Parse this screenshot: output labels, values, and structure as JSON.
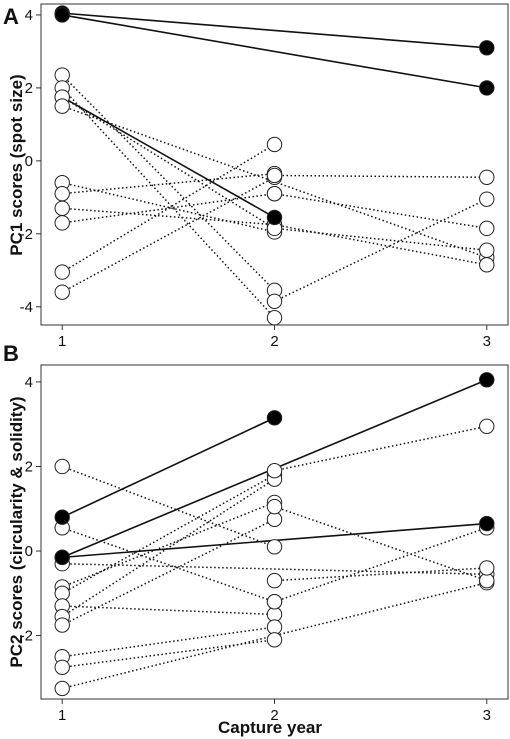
{
  "xlabel": "Capture year",
  "chart_data": [
    {
      "type": "line",
      "panel_label": "A",
      "ylabel": "PC1 scores (spot size)",
      "x_ticks": [
        1,
        2,
        3
      ],
      "y_ticks": [
        -4,
        -2,
        0,
        2,
        4
      ],
      "xlim": [
        0.9,
        3.1
      ],
      "ylim": [
        -4.5,
        4.3
      ],
      "grid": false,
      "series": [
        {
          "x": [
            1,
            3
          ],
          "y": [
            4.05,
            3.1
          ],
          "filled": [
            true,
            true
          ],
          "style": "solid"
        },
        {
          "x": [
            1,
            3
          ],
          "y": [
            4.0,
            2.0
          ],
          "filled": [
            true,
            true
          ],
          "style": "solid"
        },
        {
          "x": [
            1,
            2
          ],
          "y": [
            1.75,
            -1.55
          ],
          "filled": [
            false,
            true
          ],
          "style": "solid"
        },
        {
          "x": [
            1,
            2
          ],
          "y": [
            2.35,
            -3.55
          ],
          "filled": [
            false,
            false
          ],
          "style": "dotted"
        },
        {
          "x": [
            1,
            2
          ],
          "y": [
            2.0,
            -4.3
          ],
          "filled": [
            false,
            false
          ],
          "style": "dotted"
        },
        {
          "x": [
            1,
            2
          ],
          "y": [
            1.75,
            -1.85
          ],
          "filled": [
            false,
            false
          ],
          "style": "dotted"
        },
        {
          "x": [
            1,
            3
          ],
          "y": [
            1.5,
            -2.65
          ],
          "filled": [
            false,
            false
          ],
          "style": "dotted"
        },
        {
          "x": [
            1,
            2
          ],
          "y": [
            -0.6,
            -1.95
          ],
          "filled": [
            false,
            false
          ],
          "style": "dotted"
        },
        {
          "x": [
            1,
            2
          ],
          "y": [
            -0.9,
            -0.35
          ],
          "filled": [
            false,
            false
          ],
          "style": "dotted"
        },
        {
          "x": [
            1,
            2
          ],
          "y": [
            -1.3,
            -1.75
          ],
          "filled": [
            false,
            false
          ],
          "style": "dotted"
        },
        {
          "x": [
            1,
            2
          ],
          "y": [
            -1.7,
            -0.9
          ],
          "filled": [
            false,
            false
          ],
          "style": "dotted"
        },
        {
          "x": [
            1,
            2
          ],
          "y": [
            -3.05,
            0.45
          ],
          "filled": [
            false,
            false
          ],
          "style": "dotted"
        },
        {
          "x": [
            1,
            2
          ],
          "y": [
            -3.6,
            -0.45
          ],
          "filled": [
            false,
            false
          ],
          "style": "dotted"
        },
        {
          "x": [
            2,
            3
          ],
          "y": [
            -0.4,
            -0.45
          ],
          "filled": [
            false,
            false
          ],
          "style": "dotted"
        },
        {
          "x": [
            2,
            3
          ],
          "y": [
            -0.9,
            -1.85
          ],
          "filled": [
            false,
            false
          ],
          "style": "dotted"
        },
        {
          "x": [
            2,
            3
          ],
          "y": [
            -1.75,
            -2.85
          ],
          "filled": [
            false,
            false
          ],
          "style": "dotted"
        },
        {
          "x": [
            2,
            3
          ],
          "y": [
            -1.85,
            -2.45
          ],
          "filled": [
            false,
            false
          ],
          "style": "dotted"
        },
        {
          "x": [
            2,
            3
          ],
          "y": [
            -3.85,
            -1.05
          ],
          "filled": [
            false,
            false
          ],
          "style": "dotted"
        }
      ]
    },
    {
      "type": "line",
      "panel_label": "B",
      "ylabel": "PC2 scores (circularity & solidity)",
      "x_ticks": [
        1,
        2,
        3
      ],
      "y_ticks": [
        -2,
        0,
        2,
        4
      ],
      "xlim": [
        0.9,
        3.1
      ],
      "ylim": [
        -3.5,
        4.4
      ],
      "grid": false,
      "series": [
        {
          "x": [
            1,
            2
          ],
          "y": [
            0.8,
            3.15
          ],
          "filled": [
            true,
            true
          ],
          "style": "solid"
        },
        {
          "x": [
            1,
            3
          ],
          "y": [
            -0.15,
            4.05
          ],
          "filled": [
            true,
            true
          ],
          "style": "solid"
        },
        {
          "x": [
            1,
            3
          ],
          "y": [
            -0.15,
            0.65
          ],
          "filled": [
            true,
            true
          ],
          "style": "solid"
        },
        {
          "x": [
            1,
            2
          ],
          "y": [
            2.0,
            0.1
          ],
          "filled": [
            false,
            false
          ],
          "style": "dotted"
        },
        {
          "x": [
            1,
            2
          ],
          "y": [
            0.55,
            -1.2
          ],
          "filled": [
            false,
            false
          ],
          "style": "dotted"
        },
        {
          "x": [
            1,
            3
          ],
          "y": [
            -0.3,
            -0.55
          ],
          "filled": [
            false,
            false
          ],
          "style": "dotted"
        },
        {
          "x": [
            1,
            2
          ],
          "y": [
            -0.85,
            1.15
          ],
          "filled": [
            false,
            false
          ],
          "style": "dotted"
        },
        {
          "x": [
            1,
            2
          ],
          "y": [
            -1.0,
            1.8
          ],
          "filled": [
            false,
            false
          ],
          "style": "dotted"
        },
        {
          "x": [
            1,
            2
          ],
          "y": [
            -1.3,
            -1.5
          ],
          "filled": [
            false,
            false
          ],
          "style": "dotted"
        },
        {
          "x": [
            1,
            2
          ],
          "y": [
            -1.55,
            1.7
          ],
          "filled": [
            false,
            false
          ],
          "style": "dotted"
        },
        {
          "x": [
            1,
            2
          ],
          "y": [
            -1.75,
            0.75
          ],
          "filled": [
            false,
            false
          ],
          "style": "dotted"
        },
        {
          "x": [
            1,
            2
          ],
          "y": [
            -2.5,
            -1.8
          ],
          "filled": [
            false,
            false
          ],
          "style": "dotted"
        },
        {
          "x": [
            1,
            2
          ],
          "y": [
            -2.75,
            -2.1
          ],
          "filled": [
            false,
            false
          ],
          "style": "dotted"
        },
        {
          "x": [
            1,
            3
          ],
          "y": [
            -3.25,
            -0.75
          ],
          "filled": [
            false,
            false
          ],
          "style": "dotted"
        },
        {
          "x": [
            2,
            3
          ],
          "y": [
            1.9,
            2.95
          ],
          "filled": [
            false,
            false
          ],
          "style": "dotted"
        },
        {
          "x": [
            2,
            3
          ],
          "y": [
            1.05,
            -0.7
          ],
          "filled": [
            false,
            false
          ],
          "style": "dotted"
        },
        {
          "x": [
            2,
            3
          ],
          "y": [
            -0.7,
            -0.4
          ],
          "filled": [
            false,
            false
          ],
          "style": "dotted"
        },
        {
          "x": [
            2,
            3
          ],
          "y": [
            -1.2,
            0.55
          ],
          "filled": [
            false,
            false
          ],
          "style": "dotted"
        }
      ]
    }
  ]
}
